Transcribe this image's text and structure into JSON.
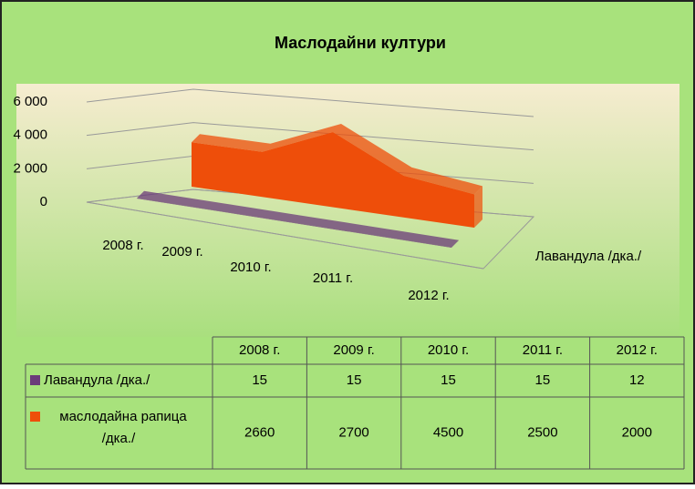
{
  "chart_data": {
    "type": "area3d",
    "title": "Маслодайни култури",
    "categories": [
      "2008 г.",
      "2009 г.",
      "2010 г.",
      "2011 г.",
      "2012 г."
    ],
    "series": [
      {
        "name": "Лавандула /дка./",
        "color": "#6b3b7a",
        "values": [
          15,
          15,
          15,
          15,
          12
        ]
      },
      {
        "name": "маслодайна рапица /дка./",
        "color": "#ee4e0a",
        "values": [
          2660,
          2700,
          4500,
          2500,
          2000
        ]
      }
    ],
    "ylim": [
      0,
      6000
    ],
    "yticks": [
      0,
      {
        "value": 2000,
        "label": "2 000"
      },
      {
        "value": 4000,
        "label": "4 000"
      },
      {
        "value": 6000,
        "label": "6 000"
      }
    ],
    "grid": true,
    "data_table": true
  }
}
